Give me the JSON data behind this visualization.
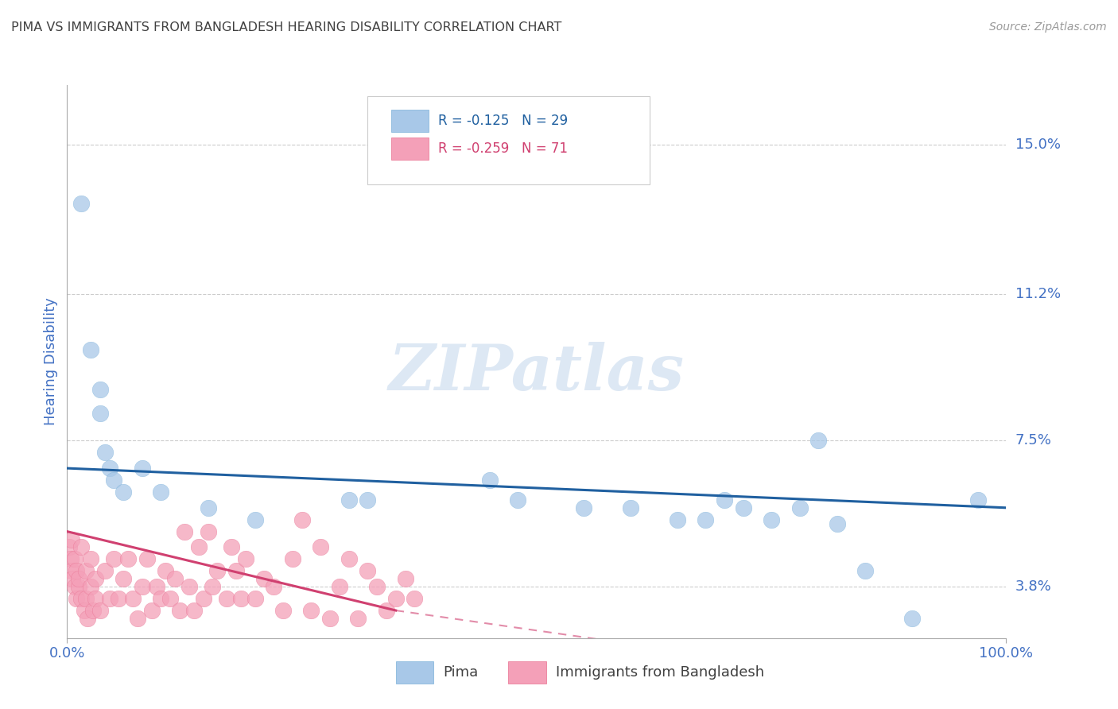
{
  "title": "PIMA VS IMMIGRANTS FROM BANGLADESH HEARING DISABILITY CORRELATION CHART",
  "source": "Source: ZipAtlas.com",
  "ylabel": "Hearing Disability",
  "xlim": [
    0.0,
    100.0
  ],
  "ylim": [
    2.5,
    16.5
  ],
  "ytick_values": [
    3.8,
    7.5,
    11.2,
    15.0
  ],
  "ytick_labels": [
    "3.8%",
    "7.5%",
    "11.2%",
    "15.0%"
  ],
  "xtick_values": [
    0.0,
    100.0
  ],
  "xtick_labels": [
    "0.0%",
    "100.0%"
  ],
  "pima_color": "#a8c8e8",
  "pima_edge_color": "#7ab0d8",
  "bangladesh_color": "#f4a0b8",
  "bangladesh_edge_color": "#e87090",
  "pima_line_color": "#2060a0",
  "bangladesh_line_color": "#d04070",
  "watermark_text": "ZIPatlas",
  "watermark_color": "#dde8f4",
  "background_color": "#ffffff",
  "grid_color": "#cccccc",
  "title_color": "#404040",
  "axis_color": "#4472c4",
  "legend_r1_color": "#2060a0",
  "legend_r2_color": "#d04070",
  "source_color": "#999999",
  "pima_points": [
    [
      1.5,
      13.5
    ],
    [
      2.5,
      9.8
    ],
    [
      3.5,
      8.8
    ],
    [
      3.5,
      8.2
    ],
    [
      4.0,
      7.2
    ],
    [
      4.5,
      6.8
    ],
    [
      5.0,
      6.5
    ],
    [
      6.0,
      6.2
    ],
    [
      8.0,
      6.8
    ],
    [
      10.0,
      6.2
    ],
    [
      15.0,
      5.8
    ],
    [
      20.0,
      5.5
    ],
    [
      30.0,
      6.0
    ],
    [
      32.0,
      6.0
    ],
    [
      45.0,
      6.5
    ],
    [
      48.0,
      6.0
    ],
    [
      55.0,
      5.8
    ],
    [
      60.0,
      5.8
    ],
    [
      65.0,
      5.5
    ],
    [
      68.0,
      5.5
    ],
    [
      70.0,
      6.0
    ],
    [
      72.0,
      5.8
    ],
    [
      75.0,
      5.5
    ],
    [
      78.0,
      5.8
    ],
    [
      80.0,
      7.5
    ],
    [
      82.0,
      5.4
    ],
    [
      85.0,
      4.2
    ],
    [
      90.0,
      3.0
    ],
    [
      97.0,
      6.0
    ]
  ],
  "bangladesh_points": [
    [
      0.2,
      4.8
    ],
    [
      0.4,
      4.5
    ],
    [
      0.5,
      4.2
    ],
    [
      0.5,
      5.0
    ],
    [
      0.6,
      4.0
    ],
    [
      0.8,
      3.8
    ],
    [
      0.8,
      4.5
    ],
    [
      1.0,
      3.5
    ],
    [
      1.0,
      4.2
    ],
    [
      1.2,
      3.8
    ],
    [
      1.2,
      4.0
    ],
    [
      1.5,
      3.5
    ],
    [
      1.5,
      4.8
    ],
    [
      1.8,
      3.2
    ],
    [
      2.0,
      3.5
    ],
    [
      2.0,
      4.2
    ],
    [
      2.2,
      3.0
    ],
    [
      2.5,
      3.8
    ],
    [
      2.5,
      4.5
    ],
    [
      2.8,
      3.2
    ],
    [
      3.0,
      3.5
    ],
    [
      3.0,
      4.0
    ],
    [
      3.5,
      3.2
    ],
    [
      4.0,
      4.2
    ],
    [
      4.5,
      3.5
    ],
    [
      5.0,
      4.5
    ],
    [
      5.5,
      3.5
    ],
    [
      6.0,
      4.0
    ],
    [
      6.5,
      4.5
    ],
    [
      7.0,
      3.5
    ],
    [
      7.5,
      3.0
    ],
    [
      8.0,
      3.8
    ],
    [
      8.5,
      4.5
    ],
    [
      9.0,
      3.2
    ],
    [
      9.5,
      3.8
    ],
    [
      10.0,
      3.5
    ],
    [
      10.5,
      4.2
    ],
    [
      11.0,
      3.5
    ],
    [
      11.5,
      4.0
    ],
    [
      12.0,
      3.2
    ],
    [
      12.5,
      5.2
    ],
    [
      13.0,
      3.8
    ],
    [
      13.5,
      3.2
    ],
    [
      14.0,
      4.8
    ],
    [
      14.5,
      3.5
    ],
    [
      15.0,
      5.2
    ],
    [
      15.5,
      3.8
    ],
    [
      16.0,
      4.2
    ],
    [
      17.0,
      3.5
    ],
    [
      17.5,
      4.8
    ],
    [
      18.0,
      4.2
    ],
    [
      18.5,
      3.5
    ],
    [
      19.0,
      4.5
    ],
    [
      20.0,
      3.5
    ],
    [
      21.0,
      4.0
    ],
    [
      22.0,
      3.8
    ],
    [
      23.0,
      3.2
    ],
    [
      24.0,
      4.5
    ],
    [
      25.0,
      5.5
    ],
    [
      26.0,
      3.2
    ],
    [
      27.0,
      4.8
    ],
    [
      28.0,
      3.0
    ],
    [
      29.0,
      3.8
    ],
    [
      30.0,
      4.5
    ],
    [
      31.0,
      3.0
    ],
    [
      32.0,
      4.2
    ],
    [
      33.0,
      3.8
    ],
    [
      34.0,
      3.2
    ],
    [
      35.0,
      3.5
    ],
    [
      36.0,
      4.0
    ],
    [
      37.0,
      3.5
    ]
  ],
  "pima_trend": [
    0.0,
    100.0,
    6.8,
    5.8
  ],
  "bangladesh_trend_solid": [
    0.0,
    35.0,
    5.2,
    3.2
  ],
  "bangladesh_trend_dashed": [
    35.0,
    100.0,
    3.2,
    1.0
  ],
  "legend_entries": [
    "R = -0.125   N = 29",
    "R = -0.259   N = 71"
  ]
}
